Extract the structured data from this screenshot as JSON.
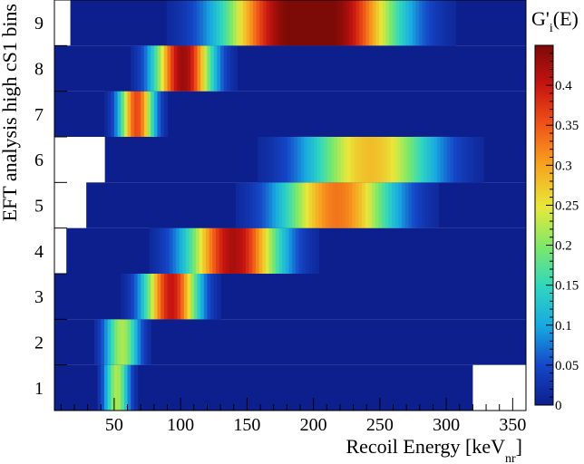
{
  "chart_data": {
    "type": "heatmap",
    "xlabel": "Recoil Energy [keV",
    "xlabel_sub": "nr",
    "xlabel_close": "]",
    "ylabel": "EFT analysis high cS1 bins",
    "colorbar_title": "G'",
    "colorbar_title_sub": "i",
    "colorbar_title_tail": "(E)",
    "xlim": [
      5,
      360
    ],
    "ylim": [
      0.5,
      9.5
    ],
    "x_ticks": [
      50,
      100,
      150,
      200,
      250,
      300,
      350
    ],
    "y_ticks": [
      1,
      2,
      3,
      4,
      5,
      6,
      7,
      8,
      9
    ],
    "zlim": [
      0,
      0.45
    ],
    "z_ticks": [
      0,
      0.05,
      0.1,
      0.15,
      0.2,
      0.25,
      0.3,
      0.35,
      0.4
    ],
    "colormap": "jet-like (dark blue to dark red)",
    "background_color": "#0d1f8c",
    "empty_color": "#ffffff",
    "rows": [
      {
        "bin": 1,
        "x_start": 5,
        "x_end": 320,
        "peak": 52,
        "sigma": 6.5,
        "amp": 0.22
      },
      {
        "bin": 2,
        "x_start": 5,
        "x_end": 360,
        "peak": 56,
        "sigma": 9,
        "amp": 0.22
      },
      {
        "bin": 3,
        "x_start": 5,
        "x_end": 360,
        "peak": 93,
        "sigma": 14,
        "amp": 0.4
      },
      {
        "bin": 4,
        "x_start": 14,
        "x_end": 360,
        "peak": 140,
        "sigma": 24,
        "amp": 0.42
      },
      {
        "bin": 5,
        "x_start": 29,
        "x_end": 360,
        "peak": 218,
        "sigma": 30,
        "amp": 0.33
      },
      {
        "bin": 6,
        "x_start": 43,
        "x_end": 360,
        "peak": 243,
        "sigma": 34,
        "amp": 0.28
      },
      {
        "bin": 7,
        "x_start": 5,
        "x_end": 360,
        "peak": 67,
        "sigma": 9,
        "amp": 0.36
      },
      {
        "bin": 8,
        "x_start": 5,
        "x_end": 360,
        "peak": 102,
        "sigma": 15,
        "amp": 0.43
      },
      {
        "bin": 9,
        "x_start": 17,
        "x_end": 360,
        "peak": 198,
        "sigma": 35,
        "amp": 0.45,
        "flat_top": 30
      }
    ]
  }
}
